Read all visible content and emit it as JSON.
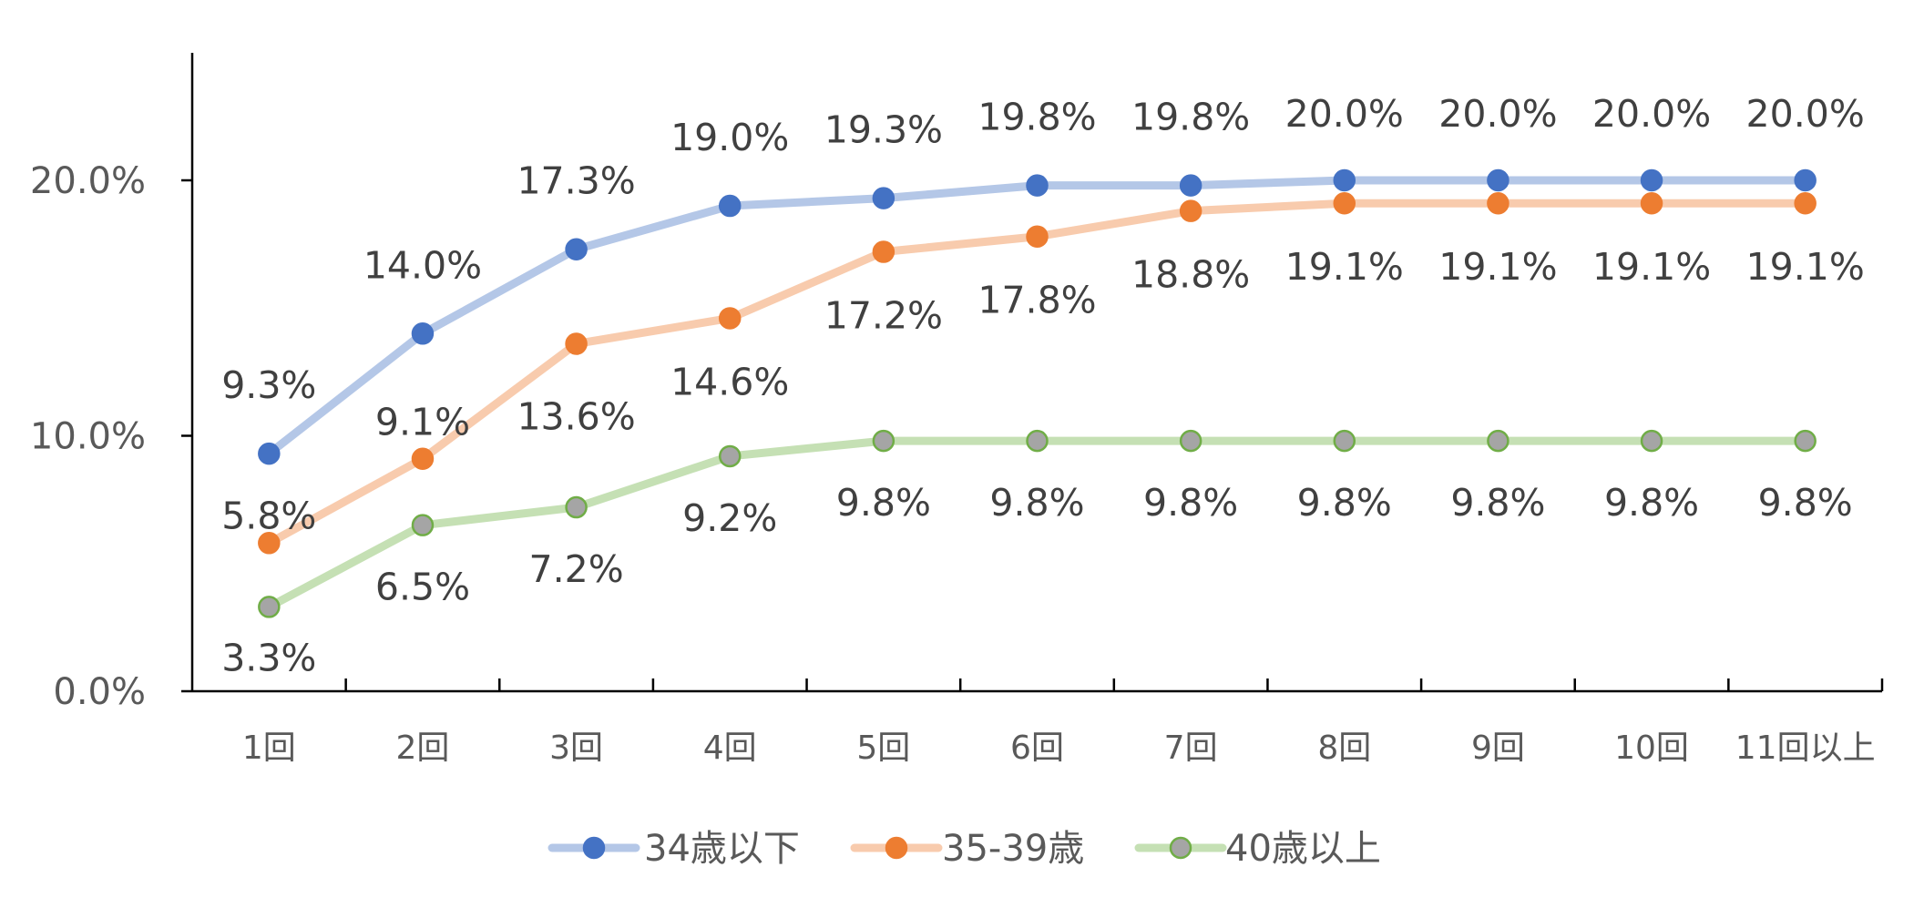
{
  "chart_data": {
    "type": "line",
    "categories": [
      "1回",
      "2回",
      "3回",
      "4回",
      "5回",
      "6回",
      "7回",
      "8回",
      "9回",
      "10回",
      "11回以上"
    ],
    "ylim": [
      0,
      25
    ],
    "yticks": [
      0,
      10,
      20
    ],
    "ytick_labels": [
      "0.0%",
      "10.0%",
      "20.0%"
    ],
    "grid": false,
    "legend_position": "bottom",
    "series": [
      {
        "name": "34歳以下",
        "values": [
          9.3,
          14.0,
          17.3,
          19.0,
          19.3,
          19.8,
          19.8,
          20.0,
          20.0,
          20.0,
          20.0
        ],
        "labels": [
          "9.3%",
          "14.0%",
          "17.3%",
          "19.0%",
          "19.3%",
          "19.8%",
          "19.8%",
          "20.0%",
          "20.0%",
          "20.0%",
          "20.0%"
        ],
        "line_color": "#b4c7e7",
        "marker_fill": "#4472c4",
        "marker_stroke": "#4472c4",
        "label_position": "above"
      },
      {
        "name": "35-39歳",
        "values": [
          5.8,
          9.1,
          13.6,
          14.6,
          17.2,
          17.8,
          18.8,
          19.1,
          19.1,
          19.1,
          19.1
        ],
        "labels": [
          "5.8%",
          "9.1%",
          "13.6%",
          "14.6%",
          "17.2%",
          "17.8%",
          "18.8%",
          "19.1%",
          "19.1%",
          "19.1%",
          "19.1%"
        ],
        "line_color": "#f8cbad",
        "marker_fill": "#ed7d31",
        "marker_stroke": "#ed7d31",
        "label_position": "mixed"
      },
      {
        "name": "40歳以上",
        "values": [
          3.3,
          6.5,
          7.2,
          9.2,
          9.8,
          9.8,
          9.8,
          9.8,
          9.8,
          9.8,
          9.8
        ],
        "labels": [
          "3.3%",
          "6.5%",
          "7.2%",
          "9.2%",
          "9.8%",
          "9.8%",
          "9.8%",
          "9.8%",
          "9.8%",
          "9.8%",
          "9.8%"
        ],
        "line_color": "#c5e0b4",
        "marker_fill": "#a5a5a5",
        "marker_stroke": "#70ad47",
        "label_position": "below"
      }
    ]
  }
}
